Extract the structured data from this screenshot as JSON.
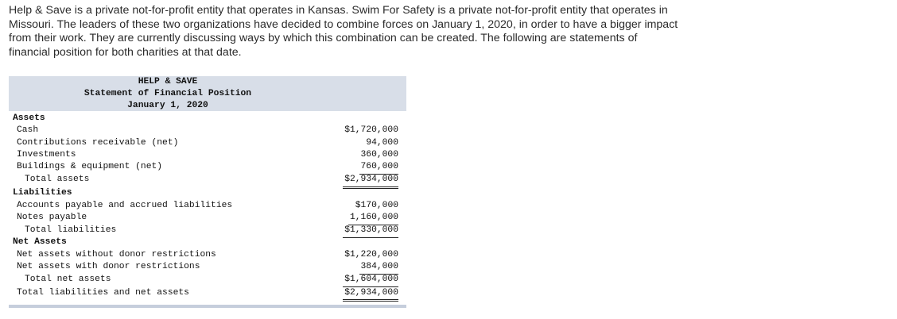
{
  "intro": {
    "line1": "Help & Save is a private not-for-profit entity that operates in Kansas. Swim For Safety is a private not-for-profit entity that operates in",
    "line2": "Missouri. The leaders of these two organizations have decided to combine forces on January 1, 2020, in order to have a bigger impact",
    "line3": "from their work. They are currently discussing ways by which this combination can be created. The following are statements of",
    "line4": "financial position for both charities at that date."
  },
  "statement": {
    "title": "HELP & SAVE",
    "subtitle": "Statement of Financial Position",
    "date": "January 1, 2020",
    "assets_heading": "Assets",
    "cash_label": "Cash",
    "cash_value": "$1,720,000",
    "contrib_label": "Contributions receivable (net)",
    "contrib_value": "94,000",
    "invest_label": "Investments",
    "invest_value": "360,000",
    "buildings_label": "Buildings & equipment (net)",
    "buildings_value": "760,000",
    "total_assets_label": "Total assets",
    "total_assets_value": "$2,934,000",
    "liabilities_heading": "Liabilities",
    "ap_label": "Accounts payable and accrued liabilities",
    "ap_value": "$170,000",
    "notes_label": "Notes payable",
    "notes_value": "1,160,000",
    "total_liab_label": "Total liabilities",
    "total_liab_value": "$1,330,000",
    "net_assets_heading": "Net Assets",
    "na_without_label": "Net assets without donor restrictions",
    "na_without_value": "$1,220,000",
    "na_with_label": "Net assets with donor restrictions",
    "na_with_value": "384,000",
    "total_na_label": "Total net assets",
    "total_na_value": "$1,604,000",
    "total_liab_na_label": "Total liabilities and net assets",
    "total_liab_na_value": "$2,934,000"
  },
  "colors": {
    "header_bg": "#d8dee8",
    "footer_bar": "#c6cedc"
  }
}
